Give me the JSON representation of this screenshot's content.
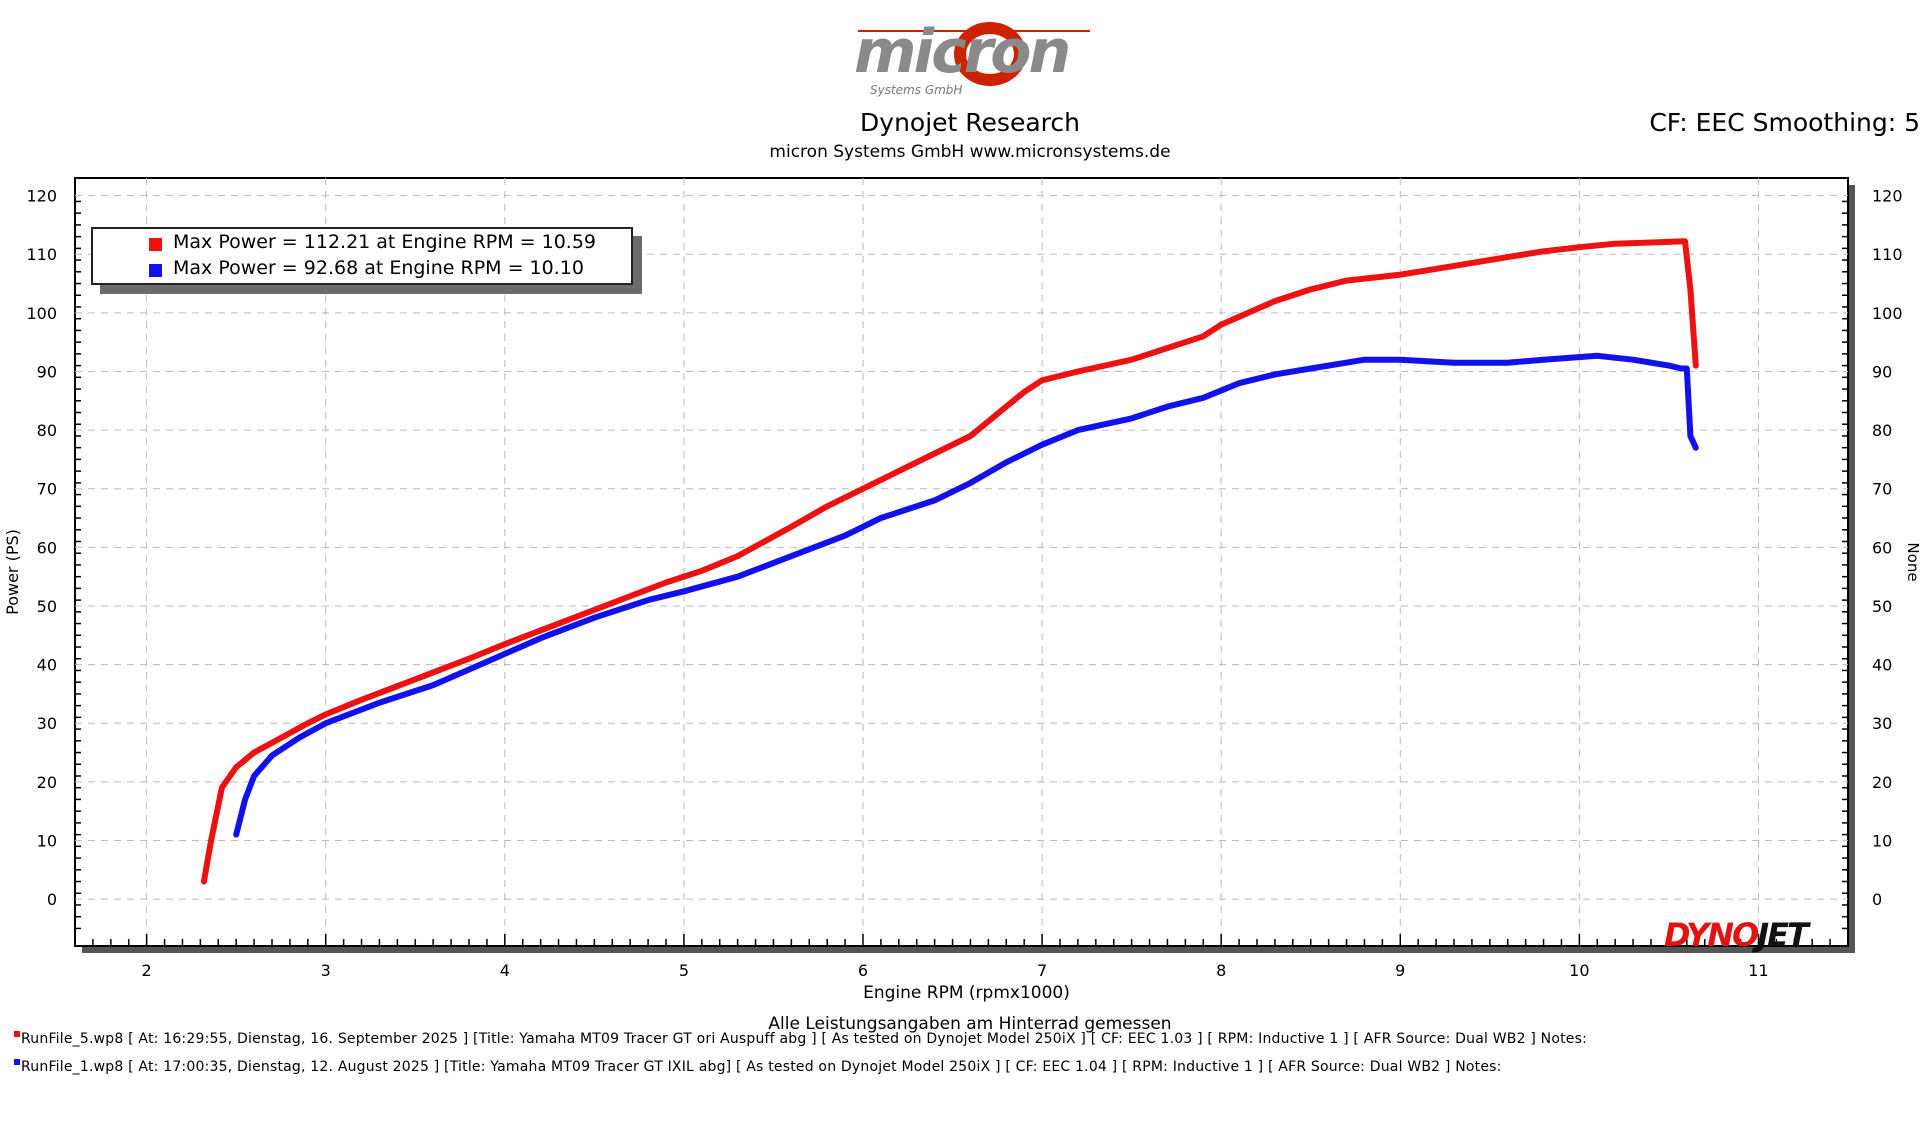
{
  "header": {
    "logo_text": "micron",
    "logo_subtext": "Systems GmbH",
    "title": "Dynojet Research",
    "subtitle": "micron Systems GmbH  www.micronsystems.de",
    "cf_label": "CF: EEC Smoothing: 5"
  },
  "colors": {
    "run1": "#ee1111",
    "run2": "#1111ee",
    "grid": "#bbbbbb",
    "logo_red": "#cc2200",
    "logo_gray": "#8a8a8a"
  },
  "legend": {
    "entries": [
      {
        "label": "Max Power = 112.21 at Engine RPM = 10.59",
        "color": "#ee1111"
      },
      {
        "label": "Max Power = 92.68 at Engine RPM = 10.10",
        "color": "#1111ee"
      }
    ]
  },
  "footnote": "Alle Leistungsangaben am Hinterrad gemessen",
  "runs": [
    "RunFile_5.wp8 [ At: 16:29:55, Dienstag, 16. September 2025 ] [Title: Yamaha MT09 Tracer GT ori Auspuff abg ]  [ As tested on Dynojet Model 250iX ] [ CF: EEC 1.03 ] [ RPM: Inductive 1 ] [ AFR Source: Dual WB2 ] Notes:",
    "RunFile_1.wp8 [ At: 17:00:35, Dienstag, 12. August 2025 ] [Title: Yamaha MT09 Tracer GT IXIL abg]  [ As tested on Dynojet Model 250iX ] [ CF: EEC 1.04 ] [ RPM: Inductive 1 ] [ AFR Source: Dual WB2 ] Notes:"
  ],
  "brand": {
    "dyno": "DYNO",
    "jet": "JET"
  },
  "chart_data": {
    "type": "line",
    "title": "Dynojet Research",
    "xlabel": "Engine RPM (rpmx1000)",
    "ylabel": "Power (PS)",
    "right_axis_label": "None",
    "xlim": [
      1.6,
      11.5
    ],
    "ylim": [
      -8,
      123
    ],
    "x_ticks": [
      2,
      3,
      4,
      5,
      6,
      7,
      8,
      9,
      10,
      11
    ],
    "y_ticks": [
      0,
      10,
      20,
      30,
      40,
      50,
      60,
      70,
      80,
      90,
      100,
      110,
      120
    ],
    "grid": true,
    "legend_position": "top-left",
    "series": [
      {
        "color": "#ee1111",
        "x": [
          2.32,
          2.36,
          2.42,
          2.5,
          2.6,
          2.75,
          2.9,
          3.0,
          3.2,
          3.5,
          3.8,
          4.0,
          4.3,
          4.6,
          4.9,
          5.1,
          5.3,
          5.6,
          5.8,
          6.0,
          6.2,
          6.4,
          6.6,
          6.8,
          6.9,
          7.0,
          7.2,
          7.5,
          7.7,
          7.9,
          8.0,
          8.3,
          8.5,
          8.7,
          9.0,
          9.3,
          9.6,
          9.8,
          10.0,
          10.2,
          10.4,
          10.59,
          10.62,
          10.65
        ],
        "y": [
          3,
          10,
          19,
          22.5,
          25,
          27.5,
          30,
          31.5,
          34,
          37.5,
          41,
          43.5,
          47,
          50.5,
          54,
          56,
          58.5,
          63.5,
          67,
          70,
          73,
          76,
          79,
          84,
          86.5,
          88.5,
          90,
          92,
          94,
          96,
          98,
          102,
          104,
          105.5,
          106.5,
          108,
          109.5,
          110.5,
          111.2,
          111.8,
          112,
          112.21,
          104,
          91
        ],
        "max_power": 112.21,
        "max_rpm": 10.59
      },
      {
        "color": "#1111ee",
        "x": [
          2.5,
          2.55,
          2.6,
          2.7,
          2.85,
          3.0,
          3.3,
          3.6,
          3.9,
          4.2,
          4.5,
          4.8,
          5.0,
          5.3,
          5.6,
          5.9,
          6.1,
          6.4,
          6.6,
          6.8,
          7.0,
          7.2,
          7.5,
          7.7,
          7.9,
          8.1,
          8.3,
          8.5,
          8.8,
          9.0,
          9.3,
          9.6,
          9.8,
          10.1,
          10.3,
          10.5,
          10.57,
          10.6,
          10.62,
          10.65
        ],
        "y": [
          11,
          17,
          21,
          24.5,
          27.5,
          30,
          33.5,
          36.5,
          40.5,
          44.5,
          48,
          51,
          52.5,
          55,
          58.5,
          62,
          65,
          68,
          71,
          74.5,
          77.5,
          80,
          82,
          84,
          85.5,
          88,
          89.5,
          90.5,
          92,
          92,
          91.5,
          91.5,
          92,
          92.68,
          92,
          91,
          90.5,
          90.5,
          79,
          77
        ]
      }
    ]
  }
}
